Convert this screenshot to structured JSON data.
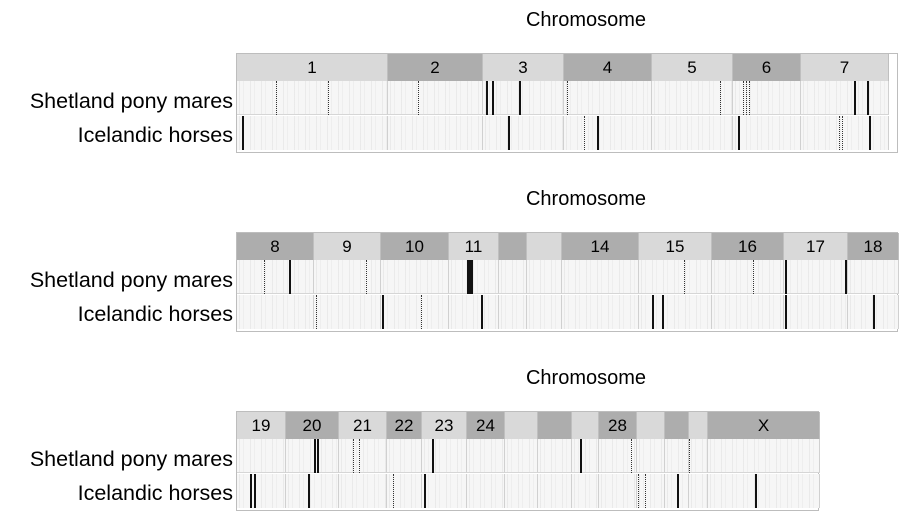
{
  "panels": [
    {
      "title": "Chromosome",
      "row_labels": [
        "Shetland pony mares",
        "Icelandic horses"
      ],
      "chromosomes": [
        "1",
        "2",
        "3",
        "4",
        "5",
        "6",
        "7"
      ],
      "signals": {
        "Shetland pony mares": [
          {
            "chromosome": "1",
            "style": "dotted"
          },
          {
            "chromosome": "1",
            "style": "dotted"
          },
          {
            "chromosome": "2",
            "style": "dotted"
          },
          {
            "chromosome": "3",
            "style": "solid"
          },
          {
            "chromosome": "3",
            "style": "solid"
          },
          {
            "chromosome": "3",
            "style": "solid"
          },
          {
            "chromosome": "3",
            "style": "dotted"
          },
          {
            "chromosome": "5",
            "style": "dotted"
          },
          {
            "chromosome": "6",
            "style": "dotted"
          },
          {
            "chromosome": "6",
            "style": "dotted"
          },
          {
            "chromosome": "6",
            "style": "dotted"
          },
          {
            "chromosome": "7",
            "style": "solid"
          },
          {
            "chromosome": "7",
            "style": "solid"
          }
        ],
        "Icelandic horses": [
          {
            "chromosome": "1",
            "style": "solid"
          },
          {
            "chromosome": "3",
            "style": "solid"
          },
          {
            "chromosome": "4",
            "style": "dotted"
          },
          {
            "chromosome": "4",
            "style": "solid"
          },
          {
            "chromosome": "6",
            "style": "solid"
          },
          {
            "chromosome": "7",
            "style": "dotted"
          },
          {
            "chromosome": "7",
            "style": "dotted"
          },
          {
            "chromosome": "7",
            "style": "solid"
          }
        ]
      }
    },
    {
      "title": "Chromosome",
      "row_labels": [
        "Shetland pony mares",
        "Icelandic horses"
      ],
      "chromosomes": [
        "8",
        "9",
        "10",
        "11",
        "",
        "",
        "14",
        "15",
        "16",
        "17",
        "18"
      ],
      "signals": {
        "Shetland pony mares": [
          {
            "chromosome": "8",
            "style": "dotted"
          },
          {
            "chromosome": "8",
            "style": "solid"
          },
          {
            "chromosome": "9",
            "style": "dotted"
          },
          {
            "chromosome": "11",
            "style": "solid"
          },
          {
            "chromosome": "11",
            "style": "solid"
          },
          {
            "chromosome": "11",
            "style": "solid"
          },
          {
            "chromosome": "15",
            "style": "dotted"
          },
          {
            "chromosome": "16",
            "style": "dotted"
          },
          {
            "chromosome": "17",
            "style": "solid"
          },
          {
            "chromosome": "17",
            "style": "solid"
          }
        ],
        "Icelandic horses": [
          {
            "chromosome": "9",
            "style": "dotted"
          },
          {
            "chromosome": "10",
            "style": "solid"
          },
          {
            "chromosome": "10",
            "style": "dotted"
          },
          {
            "chromosome": "11",
            "style": "solid"
          },
          {
            "chromosome": "15",
            "style": "solid"
          },
          {
            "chromosome": "15",
            "style": "solid"
          },
          {
            "chromosome": "17",
            "style": "solid"
          },
          {
            "chromosome": "18",
            "style": "solid"
          }
        ]
      }
    },
    {
      "title": "Chromosome",
      "row_labels": [
        "Shetland pony mares",
        "Icelandic horses"
      ],
      "chromosomes": [
        "19",
        "20",
        "21",
        "22",
        "23",
        "24",
        "",
        "",
        "",
        "28",
        "",
        "",
        "",
        "X"
      ],
      "signals": {
        "Shetland pony mares": [
          {
            "chromosome": "20",
            "style": "solid"
          },
          {
            "chromosome": "20",
            "style": "solid"
          },
          {
            "chromosome": "21",
            "style": "dotted"
          },
          {
            "chromosome": "21",
            "style": "dotted"
          },
          {
            "chromosome": "23",
            "style": "solid"
          },
          {
            "chromosome": "27",
            "style": "solid"
          },
          {
            "chromosome": "28",
            "style": "dotted"
          },
          {
            "chromosome": "31",
            "style": "dotted"
          }
        ],
        "Icelandic horses": [
          {
            "chromosome": "19",
            "style": "solid"
          },
          {
            "chromosome": "19",
            "style": "solid"
          },
          {
            "chromosome": "20",
            "style": "solid"
          },
          {
            "chromosome": "22",
            "style": "dotted"
          },
          {
            "chromosome": "23",
            "style": "solid"
          },
          {
            "chromosome": "29",
            "style": "dotted"
          },
          {
            "chromosome": "29",
            "style": "dotted"
          },
          {
            "chromosome": "29",
            "style": "solid"
          },
          {
            "chromosome": "X",
            "style": "solid"
          }
        ]
      }
    }
  ]
}
